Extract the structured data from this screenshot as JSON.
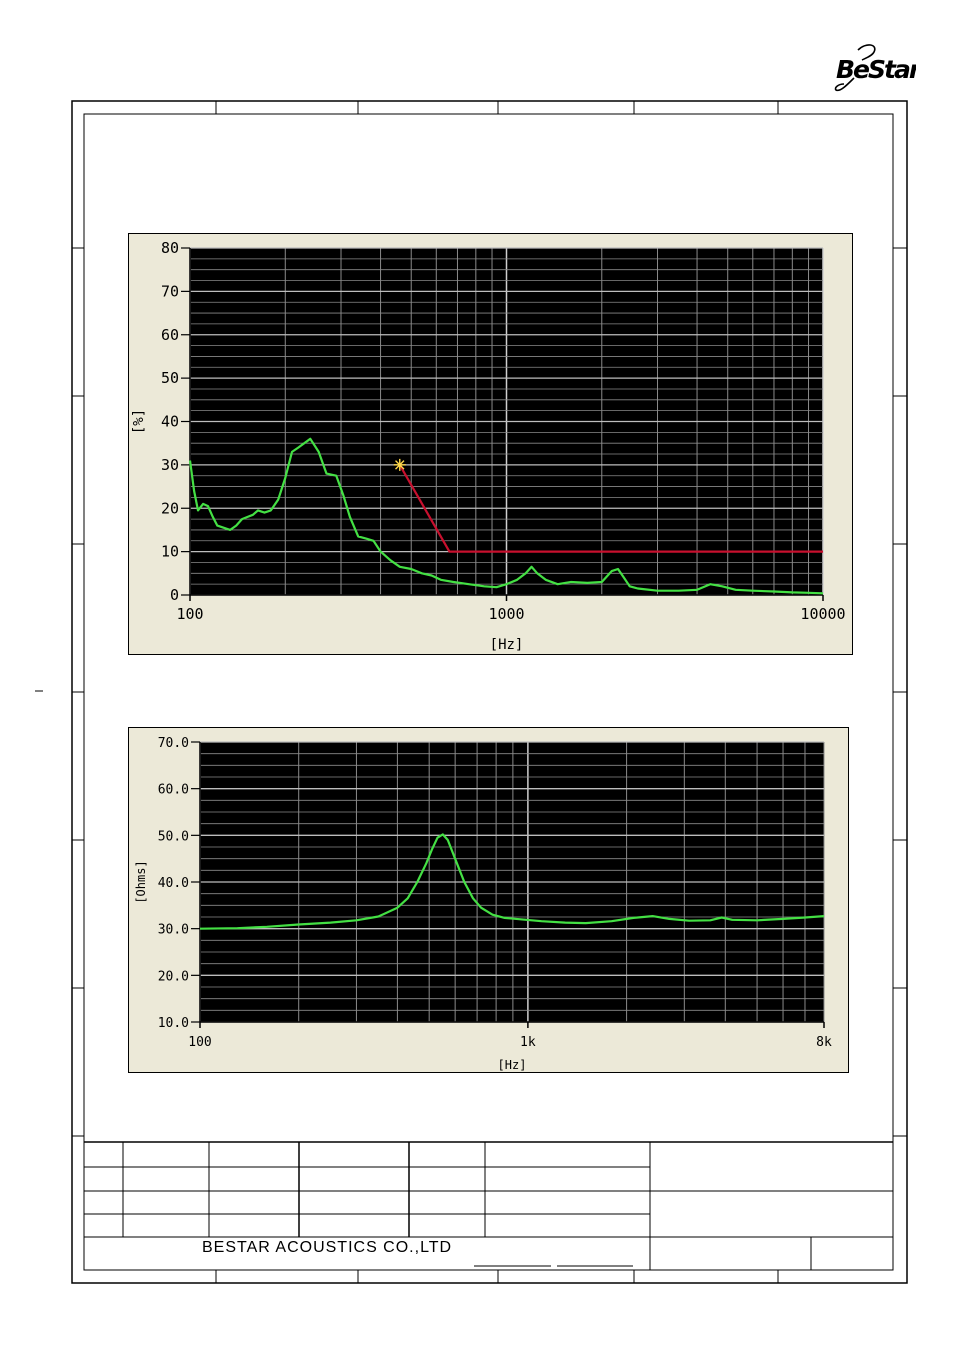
{
  "logo": {
    "text": "BeStar"
  },
  "footer": {
    "company": "BESTAR  ACOUSTICS  CO.,LTD"
  },
  "colors": {
    "plot_bg": "#000000",
    "panel_bg": "#ece9d8",
    "grid": "#8a8a8a",
    "curve": "#44e044",
    "limit": "#c8102e",
    "marker": "#ffd84a"
  },
  "chart_data": [
    {
      "type": "line",
      "title": "",
      "xlabel": "[Hz]",
      "ylabel": "[%]",
      "x_scale": "log",
      "xlim": [
        100,
        10000
      ],
      "ylim": [
        0,
        80
      ],
      "x_ticks": [
        100,
        1000,
        10000
      ],
      "x_tick_labels": [
        "100",
        "1000",
        "10000"
      ],
      "y_ticks": [
        0,
        10,
        20,
        30,
        40,
        50,
        60,
        70,
        80
      ],
      "y_tick_labels": [
        "0",
        "10",
        "20",
        "30",
        "40",
        "50",
        "60",
        "70",
        "80"
      ],
      "grid": true,
      "series": [
        {
          "role": "measured",
          "color": "#44e044",
          "points": [
            [
              100,
              31
            ],
            [
              103,
              24
            ],
            [
              106,
              19.5
            ],
            [
              110,
              21
            ],
            [
              114,
              20.5
            ],
            [
              118,
              18
            ],
            [
              122,
              16
            ],
            [
              128,
              15.5
            ],
            [
              134,
              15
            ],
            [
              140,
              16
            ],
            [
              146,
              17.5
            ],
            [
              152,
              18
            ],
            [
              158,
              18.5
            ],
            [
              164,
              19.5
            ],
            [
              172,
              19
            ],
            [
              180,
              19.5
            ],
            [
              190,
              22
            ],
            [
              200,
              27
            ],
            [
              210,
              33
            ],
            [
              220,
              34
            ],
            [
              240,
              36
            ],
            [
              255,
              33
            ],
            [
              270,
              28
            ],
            [
              290,
              27.5
            ],
            [
              305,
              23
            ],
            [
              320,
              18
            ],
            [
              340,
              13.5
            ],
            [
              360,
              13
            ],
            [
              380,
              12.5
            ],
            [
              400,
              10
            ],
            [
              430,
              8
            ],
            [
              460,
              6.5
            ],
            [
              500,
              6
            ],
            [
              540,
              5
            ],
            [
              580,
              4.5
            ],
            [
              620,
              3.5
            ],
            [
              680,
              3
            ],
            [
              760,
              2.5
            ],
            [
              850,
              2
            ],
            [
              930,
              1.8
            ],
            [
              1000,
              2.5
            ],
            [
              1080,
              3.5
            ],
            [
              1150,
              5
            ],
            [
              1200,
              6.5
            ],
            [
              1250,
              5
            ],
            [
              1330,
              3.5
            ],
            [
              1450,
              2.5
            ],
            [
              1600,
              3
            ],
            [
              1800,
              2.8
            ],
            [
              2000,
              3
            ],
            [
              2150,
              5.5
            ],
            [
              2250,
              6
            ],
            [
              2350,
              4
            ],
            [
              2450,
              2
            ],
            [
              2600,
              1.5
            ],
            [
              3000,
              1
            ],
            [
              3500,
              1
            ],
            [
              4000,
              1.2
            ],
            [
              4400,
              2.5
            ],
            [
              4800,
              2
            ],
            [
              5300,
              1.2
            ],
            [
              6000,
              1
            ],
            [
              7000,
              0.8
            ],
            [
              8000,
              0.6
            ],
            [
              9000,
              0.5
            ],
            [
              10000,
              0.4
            ]
          ]
        },
        {
          "role": "limit",
          "color": "#c8102e",
          "points": [
            [
              460,
              30
            ],
            [
              660,
              10
            ],
            [
              10000,
              10
            ]
          ]
        }
      ]
    },
    {
      "type": "line",
      "title": "",
      "xlabel": "[Hz]",
      "ylabel": "[Ohms]",
      "x_scale": "log",
      "xlim": [
        100,
        8000
      ],
      "ylim": [
        10,
        70
      ],
      "x_ticks": [
        100,
        1000,
        8000
      ],
      "x_tick_labels": [
        "100",
        "1k",
        "8k"
      ],
      "y_ticks": [
        10,
        20,
        30,
        40,
        50,
        60,
        70
      ],
      "y_tick_labels": [
        "10.0",
        "20.0",
        "30.0",
        "40.0",
        "50.0",
        "60.0",
        "70.0"
      ],
      "grid": true,
      "series": [
        {
          "role": "impedance",
          "color": "#44e044",
          "points": [
            [
              100,
              30
            ],
            [
              130,
              30.1
            ],
            [
              160,
              30.4
            ],
            [
              200,
              30.9
            ],
            [
              250,
              31.3
            ],
            [
              300,
              31.8
            ],
            [
              350,
              32.6
            ],
            [
              400,
              34.5
            ],
            [
              430,
              36.5
            ],
            [
              460,
              40
            ],
            [
              490,
              44
            ],
            [
              510,
              47
            ],
            [
              530,
              49.5
            ],
            [
              550,
              50.2
            ],
            [
              570,
              49
            ],
            [
              600,
              45
            ],
            [
              640,
              40
            ],
            [
              680,
              36.5
            ],
            [
              720,
              34.5
            ],
            [
              780,
              33
            ],
            [
              850,
              32.3
            ],
            [
              950,
              32
            ],
            [
              1100,
              31.6
            ],
            [
              1300,
              31.3
            ],
            [
              1500,
              31.2
            ],
            [
              1800,
              31.6
            ],
            [
              2100,
              32.3
            ],
            [
              2400,
              32.7
            ],
            [
              2700,
              32.1
            ],
            [
              3100,
              31.7
            ],
            [
              3600,
              31.8
            ],
            [
              3900,
              32.4
            ],
            [
              4200,
              31.9
            ],
            [
              5000,
              31.8
            ],
            [
              6000,
              32.1
            ],
            [
              7000,
              32.4
            ],
            [
              8000,
              32.7
            ]
          ]
        }
      ]
    }
  ]
}
